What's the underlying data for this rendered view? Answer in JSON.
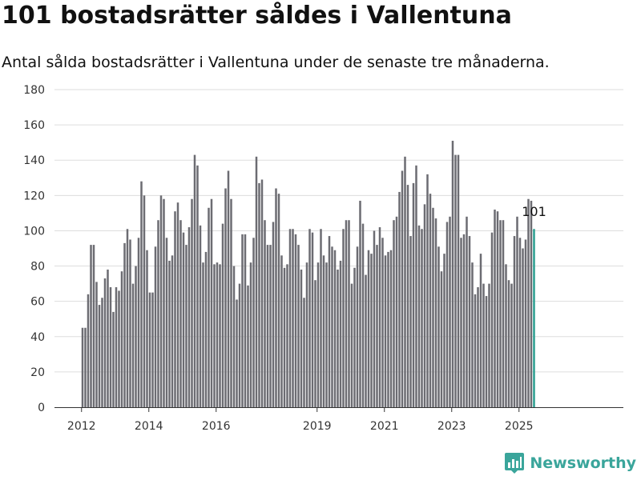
{
  "title": "101 bostadsrätter såldes i Vallentuna",
  "subtitle": "Antal sålda bostadsrätter i Vallentuna under de senaste tre månaderna.",
  "brand": "Newsworthy",
  "colors": {
    "bar": "#6c6c72",
    "highlight": "#2a9d8f",
    "grid": "#dddddd",
    "axis": "#333333",
    "brand": "#3aa59b"
  },
  "icons": {
    "brand": "bar-chart-logo-icon"
  },
  "chart_data": {
    "type": "bar",
    "x_axis": "monthly, January 2012 - April 2025",
    "y_ticks": [
      "0",
      "20",
      "40",
      "60",
      "80",
      "100",
      "120",
      "140",
      "160",
      "180"
    ],
    "x_ticks": [
      {
        "year": 2012,
        "label": "2012"
      },
      {
        "year": 2014,
        "label": "2014"
      },
      {
        "year": 2016,
        "label": "2016"
      },
      {
        "year": 2019,
        "label": "2019"
      },
      {
        "year": 2021,
        "label": "2021"
      },
      {
        "year": 2023,
        "label": "2023"
      },
      {
        "year": 2025,
        "label": "2025"
      }
    ],
    "ylim": [
      0,
      180
    ],
    "grid": true,
    "start": "2012-01",
    "values": [
      45,
      45,
      64,
      92,
      92,
      71,
      58,
      62,
      73,
      78,
      68,
      54,
      68,
      66,
      77,
      93,
      101,
      95,
      70,
      80,
      96,
      128,
      120,
      89,
      65,
      65,
      91,
      106,
      120,
      118,
      96,
      83,
      86,
      111,
      116,
      106,
      99,
      92,
      102,
      118,
      143,
      137,
      103,
      82,
      88,
      113,
      118,
      81,
      82,
      81,
      104,
      124,
      134,
      118,
      80,
      61,
      70,
      98,
      98,
      69,
      82,
      96,
      142,
      127,
      129,
      106,
      92,
      92,
      105,
      124,
      121,
      86,
      79,
      81,
      101,
      101,
      98,
      92,
      78,
      62,
      82,
      101,
      99,
      72,
      82,
      101,
      86,
      82,
      97,
      91,
      89,
      78,
      83,
      101,
      106,
      106,
      70,
      79,
      91,
      117,
      104,
      75,
      89,
      87,
      100,
      92,
      102,
      96,
      86,
      88,
      89,
      106,
      108,
      122,
      134,
      142,
      126,
      97,
      127,
      137,
      103,
      101,
      115,
      132,
      121,
      113,
      107,
      91,
      77,
      87,
      105,
      108,
      151,
      143,
      143,
      96,
      98,
      108,
      97,
      82,
      64,
      68,
      87,
      70,
      63,
      70,
      99,
      112,
      111,
      106,
      106,
      81,
      72,
      70,
      97,
      108,
      96,
      90,
      95,
      118,
      117,
      101
    ],
    "last_label": "101"
  }
}
